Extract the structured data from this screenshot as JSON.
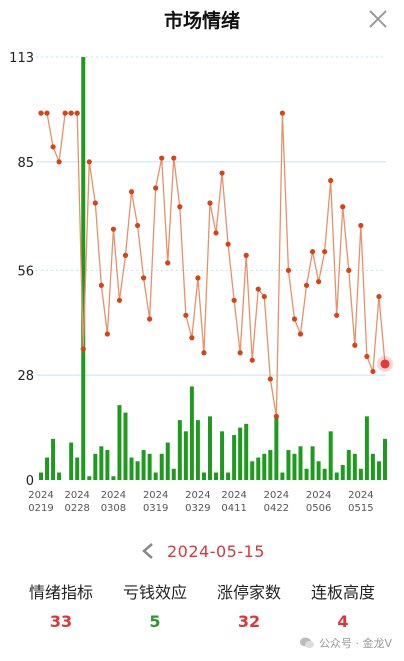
{
  "header": {
    "title": "市场情绪",
    "close_icon": "close-icon"
  },
  "date_nav": {
    "date": "2024-05-15",
    "prev_icon": "chevron-left-icon"
  },
  "stats": [
    {
      "label": "情绪指标",
      "value": "33",
      "color": "#d9373a"
    },
    {
      "label": "亏钱效应",
      "value": "5",
      "color": "#2a9a2a"
    },
    {
      "label": "涨停家数",
      "value": "32",
      "color": "#d9373a"
    },
    {
      "label": "连板高度",
      "value": "4",
      "color": "#d9373a"
    }
  ],
  "watermark": "公众号 · 金龙V",
  "colors": {
    "line": "#e8916a",
    "point": "#d84315",
    "bar": "#1e9a1e",
    "grid": "#c6e2f5",
    "highlight": "#e53935"
  },
  "chart_data": {
    "type": "line",
    "y_ticks": [
      0,
      28,
      56,
      85,
      113
    ],
    "ylim": [
      0,
      113
    ],
    "x_tick_labels": [
      {
        "index": 0,
        "year": "2024",
        "md": "0219"
      },
      {
        "index": 6,
        "year": "2024",
        "md": "0228"
      },
      {
        "index": 12,
        "year": "2024",
        "md": "0308"
      },
      {
        "index": 19,
        "year": "2024",
        "md": "0319"
      },
      {
        "index": 26,
        "year": "2024",
        "md": "0329"
      },
      {
        "index": 32,
        "year": "2024",
        "md": "0411"
      },
      {
        "index": 39,
        "year": "2024",
        "md": "0422"
      },
      {
        "index": 46,
        "year": "2024",
        "md": "0506"
      },
      {
        "index": 53,
        "year": "2024",
        "md": "0515"
      }
    ],
    "series": [
      {
        "type": "line",
        "values": [
          98,
          98,
          89,
          85,
          98,
          98,
          98,
          35,
          85,
          74,
          52,
          39,
          67,
          48,
          60,
          77,
          68,
          54,
          43,
          78,
          86,
          58,
          86,
          73,
          44,
          38,
          54,
          34,
          74,
          66,
          82,
          63,
          48,
          34,
          60,
          32,
          51,
          49,
          27,
          17,
          98,
          56,
          43,
          39,
          52,
          61,
          53,
          61,
          80,
          44,
          73,
          56,
          36,
          68,
          33,
          29,
          49,
          31
        ]
      },
      {
        "type": "bar",
        "values": [
          2,
          6,
          11,
          2,
          0,
          10,
          6,
          113,
          1,
          7,
          9,
          8,
          1,
          20,
          18,
          6,
          5,
          8,
          7,
          2,
          7,
          10,
          3,
          16,
          13,
          25,
          16,
          2,
          17,
          2,
          13,
          2,
          12,
          14,
          15,
          5,
          6,
          7,
          8,
          17,
          2,
          8,
          7,
          9,
          3,
          9,
          5,
          3,
          13,
          2,
          4,
          8,
          7,
          3,
          17,
          7,
          5,
          11
        ]
      }
    ],
    "highlight_index": 57
  }
}
